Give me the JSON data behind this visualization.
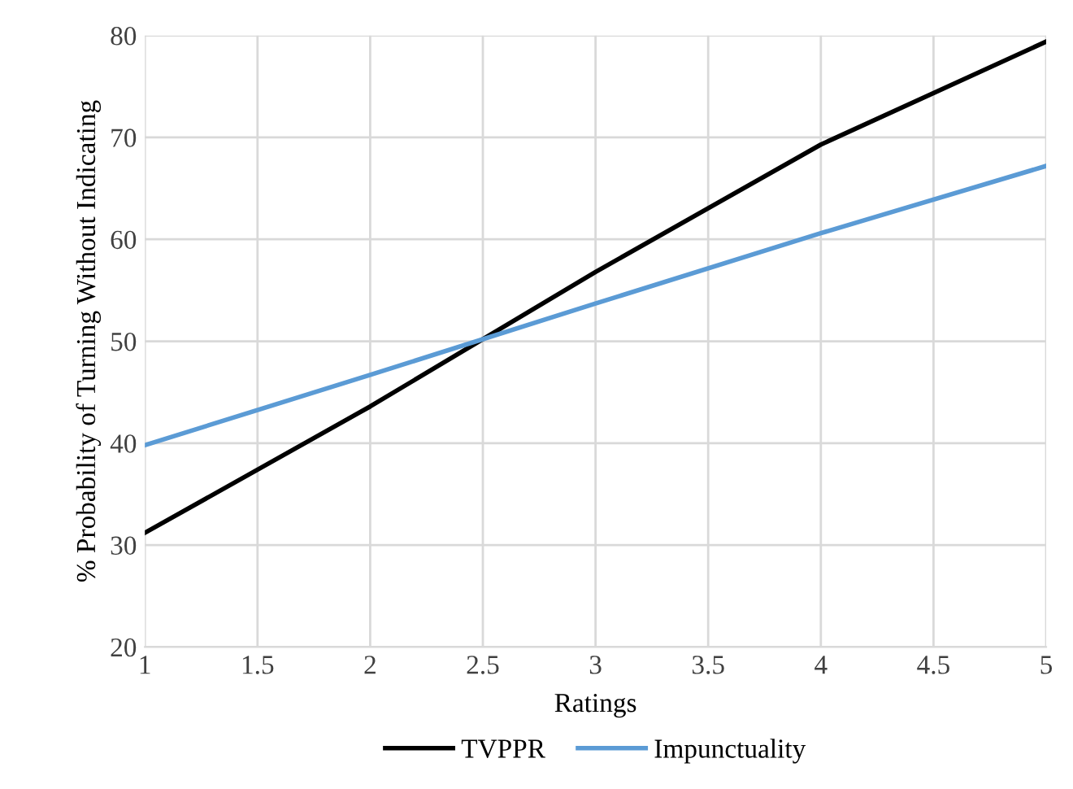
{
  "chart_data": {
    "type": "line",
    "xlabel": "Ratings",
    "ylabel": "% Probability of Turning Without Indicating",
    "x": [
      1,
      2,
      3,
      4,
      5
    ],
    "series": [
      {
        "name": "TVPPR",
        "color": "#000000",
        "values": [
          31.2,
          43.6,
          56.8,
          69.3,
          79.4
        ]
      },
      {
        "name": "Impunctuality",
        "color": "#5b9bd5",
        "values": [
          39.8,
          46.7,
          53.7,
          60.6,
          67.2
        ]
      }
    ],
    "xlim": [
      1,
      5
    ],
    "xticks": [
      1,
      1.5,
      2,
      2.5,
      3,
      3.5,
      4,
      4.5,
      5
    ],
    "ylim": [
      20,
      80
    ],
    "yticks": [
      20,
      30,
      40,
      50,
      60,
      70,
      80
    ],
    "grid": true,
    "legend": "bottom",
    "marker": "none",
    "line_style": "solid"
  }
}
